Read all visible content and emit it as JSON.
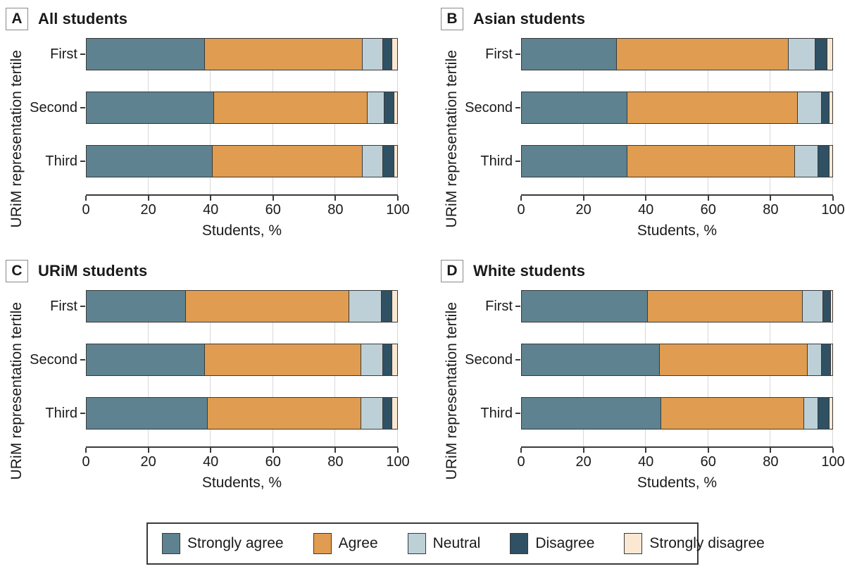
{
  "figure": {
    "legend": {
      "items": [
        {
          "label": "Strongly agree",
          "color": "#5E828F"
        },
        {
          "label": "Agree",
          "color": "#E09C50"
        },
        {
          "label": "Neutral",
          "color": "#BDD0D7"
        },
        {
          "label": "Disagree",
          "color": "#2F5163"
        },
        {
          "label": "Strongly disagree",
          "color": "#FBE8D3"
        }
      ]
    },
    "style_colors": {
      "bar_border": "#3a3a3a",
      "gridline": "#d8d8d8",
      "axis": "#3a3a3a",
      "text": "#1a1a1a"
    }
  },
  "chart_data": [
    {
      "type": "bar",
      "orientation": "horizontal",
      "stacked": true,
      "panel_label": "A",
      "title": "All students",
      "ylabel": "URiM representation tertile",
      "xlabel": "Students, %",
      "categories": [
        "First",
        "Second",
        "Third"
      ],
      "xticks": [
        0,
        20,
        40,
        60,
        80,
        100
      ],
      "xlim": [
        0,
        100
      ],
      "grid": true,
      "legend_position": "shared-bottom",
      "series": [
        {
          "name": "Strongly agree",
          "values": [
            38,
            41,
            40.5
          ]
        },
        {
          "name": "Agree",
          "values": [
            51,
            49.5,
            48.5
          ]
        },
        {
          "name": "Neutral",
          "values": [
            6.5,
            5.5,
            6.5
          ]
        },
        {
          "name": "Disagree",
          "values": [
            3,
            3,
            3.5
          ]
        },
        {
          "name": "Strongly disagree",
          "values": [
            1.5,
            1,
            1
          ]
        }
      ]
    },
    {
      "type": "bar",
      "orientation": "horizontal",
      "stacked": true,
      "panel_label": "B",
      "title": "Asian students",
      "ylabel": "URiM representation tertile",
      "xlabel": "Students, %",
      "categories": [
        "First",
        "Second",
        "Third"
      ],
      "xticks": [
        0,
        20,
        40,
        60,
        80,
        100
      ],
      "xlim": [
        0,
        100
      ],
      "grid": true,
      "legend_position": "shared-bottom",
      "series": [
        {
          "name": "Strongly agree",
          "values": [
            30.5,
            34,
            34
          ]
        },
        {
          "name": "Agree",
          "values": [
            55.5,
            55,
            54
          ]
        },
        {
          "name": "Neutral",
          "values": [
            8.5,
            7.5,
            7.5
          ]
        },
        {
          "name": "Disagree",
          "values": [
            4,
            2.5,
            3.5
          ]
        },
        {
          "name": "Strongly disagree",
          "values": [
            1.5,
            1,
            1
          ]
        }
      ]
    },
    {
      "type": "bar",
      "orientation": "horizontal",
      "stacked": true,
      "panel_label": "C",
      "title": "URiM students",
      "ylabel": "URiM representation tertile",
      "xlabel": "Students, %",
      "categories": [
        "First",
        "Second",
        "Third"
      ],
      "xticks": [
        0,
        20,
        40,
        60,
        80,
        100
      ],
      "xlim": [
        0,
        100
      ],
      "grid": true,
      "legend_position": "shared-bottom",
      "series": [
        {
          "name": "Strongly agree",
          "values": [
            32,
            38,
            39
          ]
        },
        {
          "name": "Agree",
          "values": [
            52.5,
            50.5,
            49.5
          ]
        },
        {
          "name": "Neutral",
          "values": [
            10.5,
            7,
            7
          ]
        },
        {
          "name": "Disagree",
          "values": [
            3.5,
            3,
            3
          ]
        },
        {
          "name": "Strongly disagree",
          "values": [
            1.5,
            1.5,
            1.5
          ]
        }
      ]
    },
    {
      "type": "bar",
      "orientation": "horizontal",
      "stacked": true,
      "panel_label": "D",
      "title": "White students",
      "ylabel": "URiM representation tertile",
      "xlabel": "Students, %",
      "categories": [
        "First",
        "Second",
        "Third"
      ],
      "xticks": [
        0,
        20,
        40,
        60,
        80,
        100
      ],
      "xlim": [
        0,
        100
      ],
      "grid": true,
      "legend_position": "shared-bottom",
      "series": [
        {
          "name": "Strongly agree",
          "values": [
            40.5,
            44.5,
            45
          ]
        },
        {
          "name": "Agree",
          "values": [
            50,
            47.5,
            46
          ]
        },
        {
          "name": "Neutral",
          "values": [
            6.5,
            4.5,
            4.5
          ]
        },
        {
          "name": "Disagree",
          "values": [
            2.5,
            3,
            3.5
          ]
        },
        {
          "name": "Strongly disagree",
          "values": [
            0.5,
            0.5,
            1
          ]
        }
      ]
    }
  ]
}
